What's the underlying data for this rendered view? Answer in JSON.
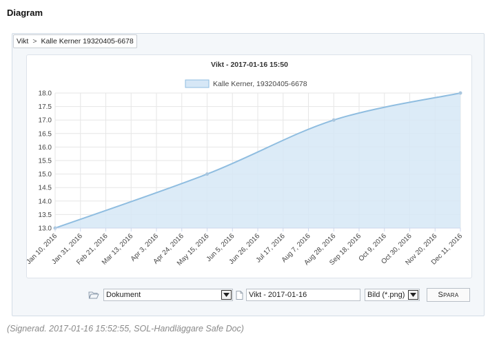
{
  "page": {
    "heading": "Diagram"
  },
  "breadcrumb": {
    "root": "Vikt",
    "separator": ">",
    "current": "Kalle Kerner 19320405-6678"
  },
  "chart_data": {
    "type": "area",
    "title": "Vikt - 2017-01-16 15:50",
    "legend": {
      "position": "top-center",
      "entries": [
        "Kalle Kerner, 19320405-6678"
      ]
    },
    "series": [
      {
        "name": "Kalle Kerner, 19320405-6678",
        "x": [
          "2016-01-10",
          "2016-05-15",
          "2016-08-28",
          "2016-12-11"
        ],
        "values": [
          13.0,
          15.0,
          17.0,
          18.0
        ]
      }
    ],
    "x_ticks": [
      "Jan 10, 2016",
      "Jan 31, 2016",
      "Feb 21, 2016",
      "Mar 13, 2016",
      "Apr 3, 2016",
      "Apr 24, 2016",
      "May 15, 2016",
      "Jun 5, 2016",
      "Jun 26, 2016",
      "Jul 17, 2016",
      "Aug 7, 2016",
      "Aug 28, 2016",
      "Sep 18, 2016",
      "Oct 9, 2016",
      "Oct 30, 2016",
      "Nov 20, 2016",
      "Dec 11, 2016"
    ],
    "y_ticks": [
      "13.0",
      "13.5",
      "14.0",
      "14.5",
      "15.0",
      "15.5",
      "16.0",
      "16.5",
      "17.0",
      "17.5",
      "18.0"
    ],
    "ylim": [
      13.0,
      18.0
    ],
    "xlim": [
      "2016-01-10",
      "2016-12-11"
    ],
    "grid": true,
    "colors": {
      "line": "#8fbde0",
      "fill": "#d6e7f6",
      "marker": "#a9c6de",
      "grid": "#e6e6e6"
    }
  },
  "toolbar": {
    "folder_icon": "folder-icon",
    "folder_select": "Dokument",
    "doc_icon": "document-icon",
    "filename": "Vikt - 2017-01-16",
    "format_select": "Bild (*.png)",
    "save_label": "Spara"
  },
  "footer": {
    "signed_text": "(Signerad. 2017-01-16 15:52:55, SOL-Handläggare Safe Doc)"
  }
}
